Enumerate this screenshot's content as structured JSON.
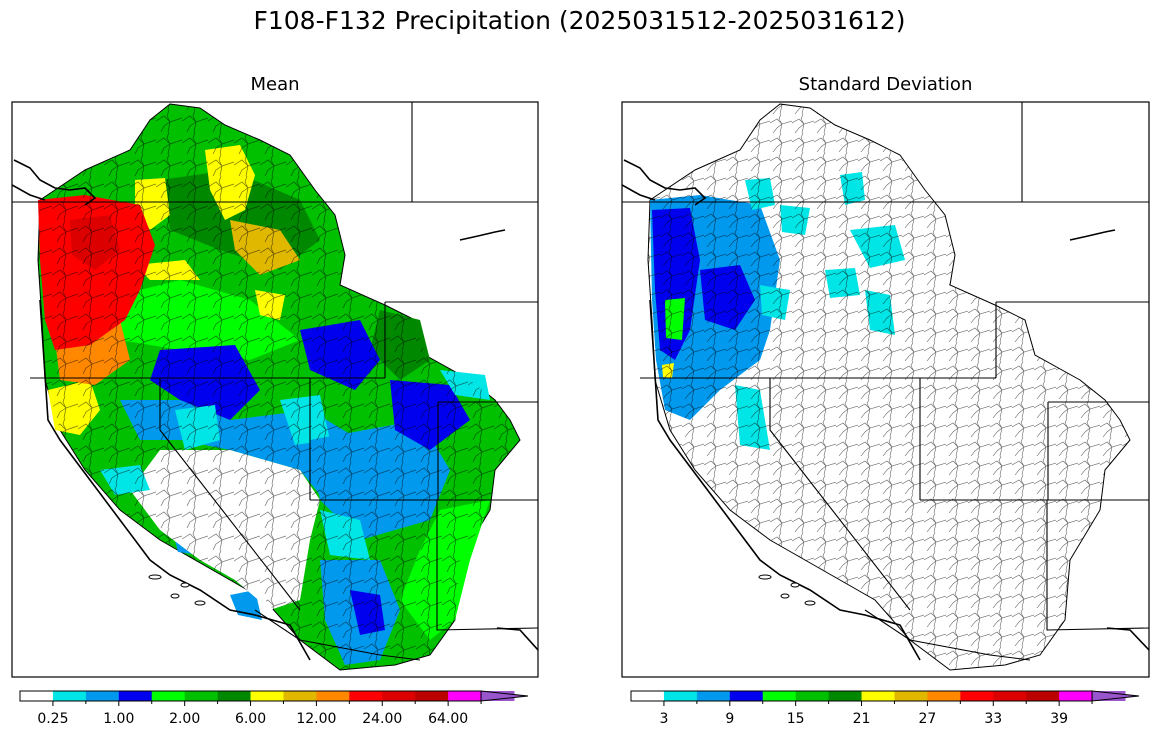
{
  "figure": {
    "title": "F108-F132 Precipitation (2025031512-2025031612)"
  },
  "panels": {
    "mean": {
      "title": "Mean"
    },
    "sd": {
      "title": "Standard Deviation"
    }
  },
  "colorbar": {
    "colors": [
      "#ffffff",
      "#00e5e5",
      "#0099ee",
      "#0000ee",
      "#00ff00",
      "#00c000",
      "#008800",
      "#ffff00",
      "#e0b800",
      "#ff8800",
      "#ff0000",
      "#dd0000",
      "#bb0000",
      "#ff00ff",
      "#9955cc"
    ],
    "mean_ticks": [
      "0.25",
      "1.00",
      "2.00",
      "6.00",
      "12.00",
      "24.00",
      "64.00"
    ],
    "sd_ticks": [
      "3",
      "9",
      "15",
      "21",
      "27",
      "33",
      "39"
    ]
  }
}
